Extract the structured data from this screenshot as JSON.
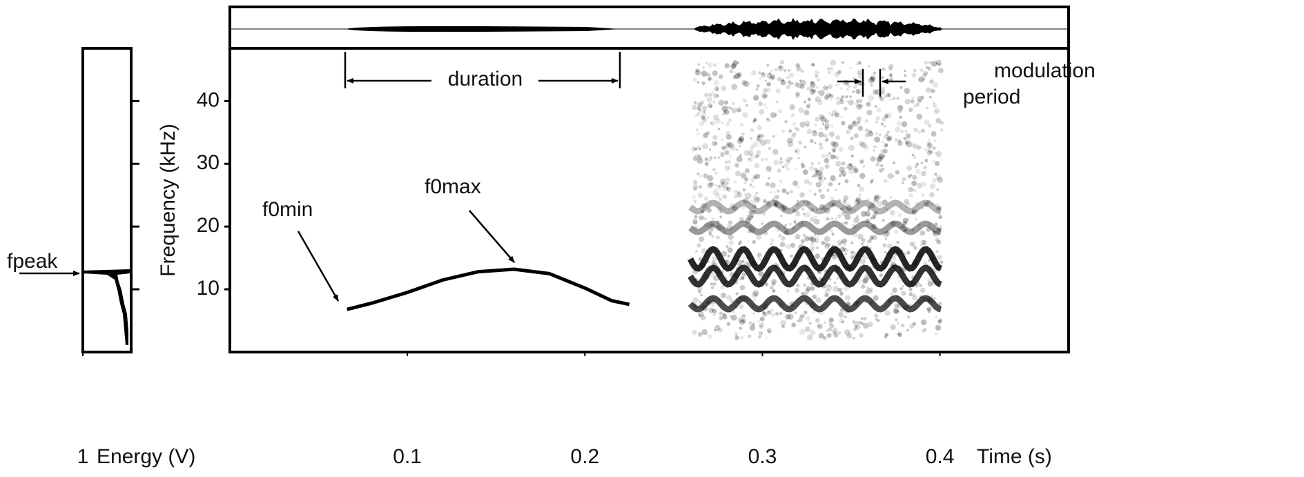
{
  "chart_data": {
    "type": "spectrogram",
    "xlabel": "Time (s)",
    "ylabel": "Frequency (kHz)",
    "xlim": [
      0,
      0.4725
    ],
    "xticks": [
      0.1,
      0.2,
      0.3,
      0.4
    ],
    "ylim": [
      0,
      48.4
    ],
    "yticks": [
      10,
      20,
      30,
      40
    ],
    "contour": {
      "x": [
        0.066,
        0.08,
        0.1,
        0.12,
        0.14,
        0.16,
        0.18,
        0.2,
        0.215,
        0.225
      ],
      "values": [
        6.8,
        7.8,
        9.5,
        11.5,
        12.8,
        13.2,
        12.5,
        10.2,
        8.2,
        7.6
      ]
    },
    "energy_panel": {
      "xlabel": "Energy (V)",
      "xlim": [
        1,
        0
      ],
      "xticks": [
        1
      ]
    },
    "annotations": {
      "fpeak": "fpeak",
      "f0min": "f0min",
      "f0max": "f0max",
      "duration": "duration",
      "modulation_period": [
        "modulation",
        "period"
      ]
    }
  }
}
